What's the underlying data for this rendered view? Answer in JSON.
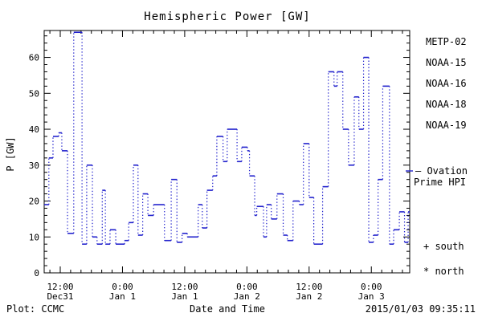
{
  "title": "Hemispheric Power [GW]",
  "footer": {
    "plot_credit": "Plot: CCMC",
    "timestamp": "2015/01/03 09:35:11"
  },
  "legend": {
    "satellites": [
      {
        "label": "METP-02",
        "color": "#000000"
      },
      {
        "label": "NOAA-15",
        "color": "#2323cd"
      },
      {
        "label": "NOAA-16",
        "color": "#2fc8ff"
      },
      {
        "label": "NOAA-18",
        "color": "#7fe39b"
      },
      {
        "label": "NOAA-19",
        "color": "#ff9c2a"
      }
    ],
    "ovation": {
      "line1": "— Ovation",
      "line2": "Prime HPI",
      "color": "#2323cd"
    },
    "south_label": "+ south",
    "north_label": "* north"
  },
  "chart_data": {
    "type": "line",
    "subtype": "step-dotted",
    "title": "Hemispheric Power [GW]",
    "xlabel": "Date and Time",
    "ylabel": "P [GW]",
    "ylim": [
      0,
      67.5
    ],
    "y_major_ticks": [
      0,
      10,
      20,
      30,
      40,
      50,
      60
    ],
    "y_minor_step": 2,
    "x_axis_unit": "hours from Dec 31 00:00",
    "xlim": [
      8.9,
      79.4
    ],
    "x_minor_step_hours": 2,
    "grid": false,
    "legend_position": "right",
    "x_ticks": [
      {
        "t": 12,
        "time": "12:00",
        "date": "Dec31"
      },
      {
        "t": 24,
        "time": "0:00",
        "date": "Jan 1"
      },
      {
        "t": 36,
        "time": "12:00",
        "date": "Jan 1"
      },
      {
        "t": 48,
        "time": "0:00",
        "date": "Jan 2"
      },
      {
        "t": 60,
        "time": "12:00",
        "date": "Jan 2"
      },
      {
        "t": 72,
        "time": "0:00",
        "date": "Jan 3"
      }
    ],
    "series": [
      {
        "name": "NOAA-15 Ovation Prime HPI",
        "color": "#2323cd",
        "points": [
          [
            8.9,
            19
          ],
          [
            9.8,
            32
          ],
          [
            10.6,
            38
          ],
          [
            11.7,
            39
          ],
          [
            12.3,
            34
          ],
          [
            13.4,
            11
          ],
          [
            14.6,
            67
          ],
          [
            16.2,
            8
          ],
          [
            17.1,
            30
          ],
          [
            18.2,
            10
          ],
          [
            19.1,
            8
          ],
          [
            20.1,
            23
          ],
          [
            20.7,
            8
          ],
          [
            21.6,
            12
          ],
          [
            22.7,
            8
          ],
          [
            24.4,
            9
          ],
          [
            25.2,
            14
          ],
          [
            26.1,
            30
          ],
          [
            27.0,
            10.5
          ],
          [
            27.9,
            22
          ],
          [
            28.9,
            16
          ],
          [
            30.0,
            19
          ],
          [
            32.1,
            9
          ],
          [
            33.4,
            26
          ],
          [
            34.5,
            8.5
          ],
          [
            35.5,
            11
          ],
          [
            36.5,
            10
          ],
          [
            38.6,
            19
          ],
          [
            39.4,
            12.5
          ],
          [
            40.3,
            23
          ],
          [
            41.4,
            27
          ],
          [
            42.2,
            38
          ],
          [
            43.4,
            31
          ],
          [
            44.2,
            40
          ],
          [
            46.1,
            31
          ],
          [
            47.0,
            35
          ],
          [
            48.1,
            34
          ],
          [
            48.5,
            27
          ],
          [
            49.5,
            16
          ],
          [
            49.9,
            18.5
          ],
          [
            51.2,
            10
          ],
          [
            51.8,
            19
          ],
          [
            52.7,
            15
          ],
          [
            53.8,
            22
          ],
          [
            55.0,
            10.5
          ],
          [
            55.8,
            9
          ],
          [
            56.9,
            20
          ],
          [
            58.1,
            19
          ],
          [
            58.9,
            36
          ],
          [
            60.0,
            21
          ],
          [
            60.9,
            8
          ],
          [
            62.6,
            24
          ],
          [
            63.7,
            56
          ],
          [
            64.8,
            52
          ],
          [
            65.4,
            56
          ],
          [
            66.5,
            40
          ],
          [
            67.6,
            30
          ],
          [
            68.7,
            49
          ],
          [
            69.6,
            40
          ],
          [
            70.5,
            60
          ],
          [
            71.5,
            8.5
          ],
          [
            72.4,
            10.5
          ],
          [
            73.3,
            26
          ],
          [
            74.2,
            52
          ],
          [
            75.5,
            8
          ],
          [
            76.3,
            12
          ],
          [
            77.4,
            17
          ],
          [
            78.4,
            8.5
          ],
          [
            79.1,
            17
          ]
        ]
      }
    ]
  }
}
